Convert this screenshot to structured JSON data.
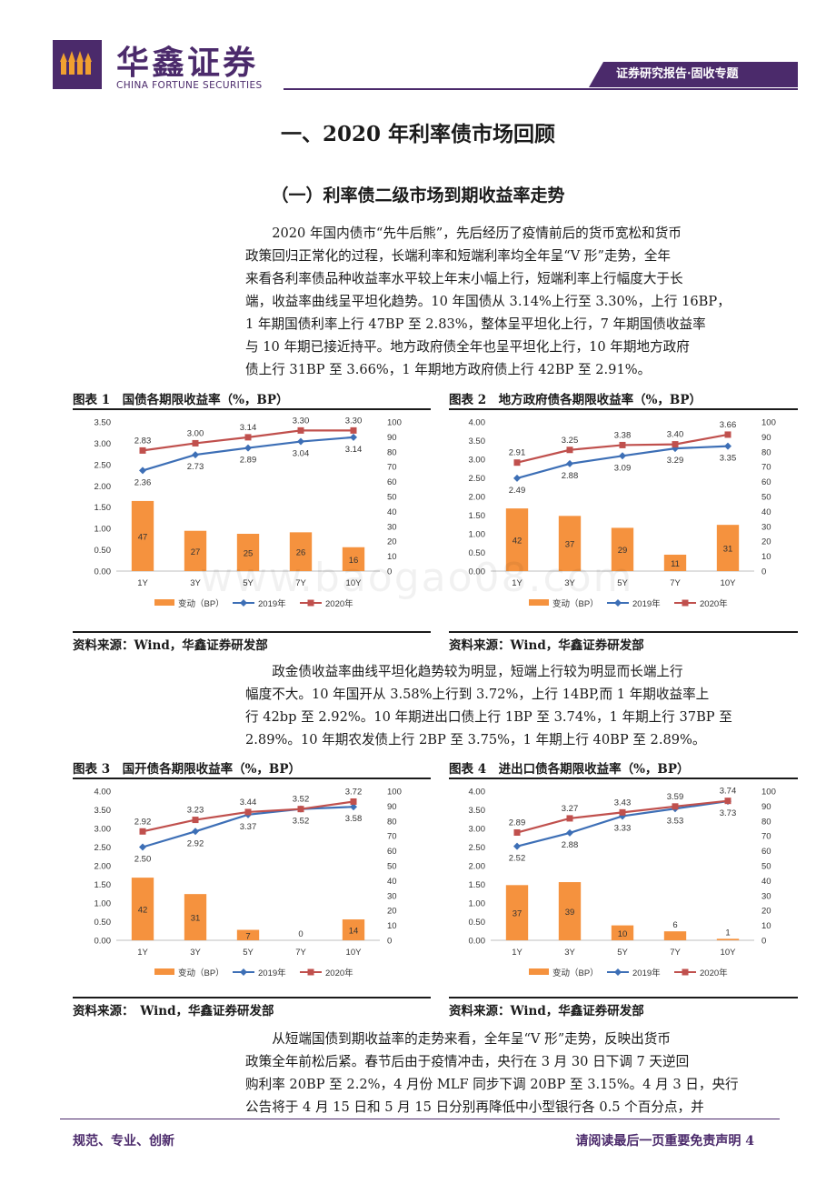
{
  "header": {
    "company_cn": "华鑫证券",
    "company_en": "CHINA FORTUNE SECURITIES",
    "report_tag": "证券研究报告·固收专题"
  },
  "heading1": "一、2020 年利率债市场回顾",
  "heading2": "（一）利率债二级市场到期收益率走势",
  "paragraph1": [
    "2020 年国内债市“先牛后熊”，先后经历了疫情前后的货币宽松和货币",
    "政策回归正常化的过程，长端利率和短端利率均全年呈“V 形”走势，全年",
    "来看各利率债品种收益率水平较上年末小幅上行，短端利率上行幅度大于长",
    "端，收益率曲线呈平坦化趋势。10 年国债从 3.14%上行至 3.30%，上行 16BP，",
    "1 年期国债利率上行 47BP 至 2.83%，整体呈平坦化上行，7 年期国债收益率",
    "与 10 年期已接近持平。地方政府债全年也呈平坦化上行，10 年期地方政府",
    "债上行 31BP 至 3.66%，1 年期地方政府债上行 42BP 至 2.91%。"
  ],
  "paragraph2": [
    "政金债收益率曲线平坦化趋势较为明显，短端上行较为明显而长端上行",
    "幅度不大。10 年国开从 3.58%上行到 3.72%，上行 14BP,而 1 年期收益率上",
    "行 42bp 至 2.92%。10 年期进出口债上行 1BP 至 3.74%，1 年期上行 37BP 至",
    "2.89%。10 年期农发债上行 2BP 至 3.75%，1 年期上行 40BP 至 2.89%。"
  ],
  "paragraph3": [
    "从短端国债到期收益率的走势来看，全年呈“V 形”走势，反映出货币",
    "政策全年前松后紧。春节后由于疫情冲击，央行在 3 月 30 日下调 7 天逆回",
    "购利率 20BP 至 2.2%，4 月份 MLF 同步下调 20BP 至 3.15%。4 月 3 日，央行",
    "公告将于 4 月 15 日和 5 月 15 日分别再降低中小型银行各 0.5 个百分点，并"
  ],
  "figures": [
    {
      "title": "图表 1　国债各期限收益率（%，BP）",
      "source": "资料来源：Wind，华鑫证券研发部"
    },
    {
      "title": "图表 2　地方政府债各期限收益率（%，BP）",
      "source": "资料来源：Wind，华鑫证券研发部"
    },
    {
      "title": "图表 3　国开债各期限收益率（%，BP）",
      "source": "资料来源：　Wind，华鑫证券研发部"
    },
    {
      "title": "图表 4　进出口债各期限收益率（%，BP）",
      "source": "资料来源：Wind，华鑫证券研发部"
    }
  ],
  "colors": {
    "bar": "#f5923e",
    "line2019": "#3d6fb6",
    "line2020": "#c0504d",
    "brand": "#4b2a6b"
  },
  "chart_data": [
    {
      "type": "bar",
      "categories": [
        "1Y",
        "3Y",
        "5Y",
        "7Y",
        "10Y"
      ],
      "series": [
        {
          "name": "变动（BP）",
          "type": "bar",
          "axis": "right",
          "values": [
            47,
            27,
            25,
            26,
            16
          ]
        },
        {
          "name": "2019年",
          "type": "line",
          "axis": "left",
          "values": [
            2.36,
            2.73,
            2.89,
            3.04,
            3.14
          ]
        },
        {
          "name": "2020年",
          "type": "line",
          "axis": "left",
          "values": [
            2.83,
            3.0,
            3.14,
            3.3,
            3.3
          ]
        }
      ],
      "y_left": {
        "min": 0,
        "max": 3.5,
        "step": 0.5,
        "ticks": [
          "0.00",
          "0.50",
          "1.00",
          "1.50",
          "2.00",
          "2.50",
          "3.00",
          "3.50"
        ]
      },
      "y_right": {
        "min": 0,
        "max": 100,
        "step": 10
      },
      "legend": "bottom"
    },
    {
      "type": "bar",
      "categories": [
        "1Y",
        "3Y",
        "5Y",
        "7Y",
        "10Y"
      ],
      "series": [
        {
          "name": "变动（BP）",
          "type": "bar",
          "axis": "right",
          "values": [
            42,
            37,
            29,
            11,
            31
          ]
        },
        {
          "name": "2019年",
          "type": "line",
          "axis": "left",
          "values": [
            2.49,
            2.88,
            3.09,
            3.29,
            3.35
          ]
        },
        {
          "name": "2020年",
          "type": "line",
          "axis": "left",
          "values": [
            2.91,
            3.25,
            3.38,
            3.4,
            3.66
          ]
        }
      ],
      "y_left": {
        "min": 0,
        "max": 4.0,
        "step": 0.5,
        "ticks": [
          "0.00",
          "0.50",
          "1.00",
          "1.50",
          "2.00",
          "2.50",
          "3.00",
          "3.50",
          "4.00"
        ]
      },
      "y_right": {
        "min": 0,
        "max": 100,
        "step": 10
      },
      "legend": "bottom"
    },
    {
      "type": "bar",
      "categories": [
        "1Y",
        "3Y",
        "5Y",
        "7Y",
        "10Y"
      ],
      "series": [
        {
          "name": "变动（BP）",
          "type": "bar",
          "axis": "right",
          "values": [
            42,
            31,
            7,
            0,
            14
          ]
        },
        {
          "name": "2019年",
          "type": "line",
          "axis": "left",
          "values": [
            2.5,
            2.92,
            3.37,
            3.52,
            3.58
          ]
        },
        {
          "name": "2020年",
          "type": "line",
          "axis": "left",
          "values": [
            2.92,
            3.23,
            3.44,
            3.52,
            3.72
          ]
        }
      ],
      "y_left": {
        "min": 0,
        "max": 4.0,
        "step": 0.5,
        "ticks": [
          "0.00",
          "0.50",
          "1.00",
          "1.50",
          "2.00",
          "2.50",
          "3.00",
          "3.50",
          "4.00"
        ]
      },
      "y_right": {
        "min": 0,
        "max": 100,
        "step": 10
      },
      "legend": "bottom"
    },
    {
      "type": "bar",
      "categories": [
        "1Y",
        "3Y",
        "5Y",
        "7Y",
        "10Y"
      ],
      "series": [
        {
          "name": "变动（BP）",
          "type": "bar",
          "axis": "right",
          "values": [
            37,
            39,
            10,
            6,
            1
          ]
        },
        {
          "name": "2019年",
          "type": "line",
          "axis": "left",
          "values": [
            2.52,
            2.88,
            3.33,
            3.53,
            3.73
          ]
        },
        {
          "name": "2020年",
          "type": "line",
          "axis": "left",
          "values": [
            2.89,
            3.27,
            3.43,
            3.59,
            3.74
          ]
        }
      ],
      "y_left": {
        "min": 0,
        "max": 4.0,
        "step": 0.5,
        "ticks": [
          "0.00",
          "0.50",
          "1.00",
          "1.50",
          "2.00",
          "2.50",
          "3.00",
          "3.50",
          "4.00"
        ]
      },
      "y_right": {
        "min": 0,
        "max": 100,
        "step": 10
      },
      "legend": "bottom"
    }
  ],
  "footer": {
    "left": "规范、专业、创新",
    "right": "请阅读最后一页重要免责声明 4"
  },
  "watermark": "www.baogao08.com"
}
